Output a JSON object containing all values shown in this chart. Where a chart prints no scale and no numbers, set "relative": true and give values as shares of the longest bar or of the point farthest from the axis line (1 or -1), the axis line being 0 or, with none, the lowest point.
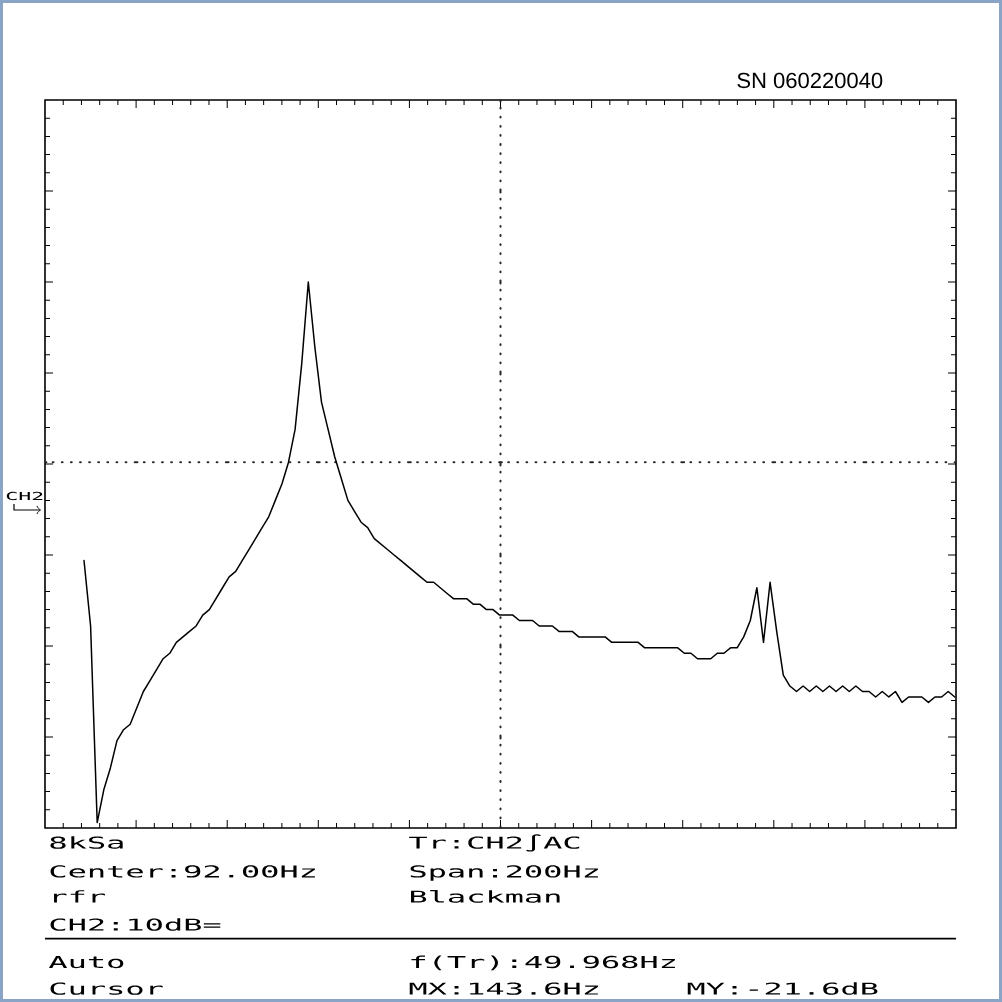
{
  "chart_data": {
    "type": "line",
    "relative": true,
    "color": "#000000",
    "categories": [
      null,
      null,
      null,
      null,
      null,
      null,
      null,
      null,
      null,
      null,
      null,
      null,
      null,
      null,
      null,
      null,
      null,
      null,
      null,
      null,
      null,
      null,
      null,
      null,
      null,
      null,
      null,
      null,
      null,
      null,
      null,
      null,
      null,
      null,
      null,
      null,
      null,
      null,
      null,
      null,
      null,
      null,
      null,
      null,
      null,
      null,
      null,
      null,
      null,
      null,
      null,
      null,
      null,
      null,
      null,
      null,
      null,
      null,
      null,
      null,
      null,
      null,
      null,
      null,
      null,
      null,
      null,
      null,
      null,
      null,
      null,
      null,
      null,
      null,
      null,
      null,
      null,
      null,
      null,
      null,
      null,
      null,
      null,
      null,
      null,
      null,
      null,
      null,
      null,
      null,
      null,
      null,
      null,
      null,
      null,
      null,
      null,
      null,
      null,
      null,
      null,
      null,
      null,
      null,
      null,
      null,
      null,
      null,
      null,
      null,
      null,
      null,
      null,
      null,
      null,
      null,
      null,
      null,
      null,
      null,
      null,
      null,
      null,
      null,
      null,
      null,
      null,
      null,
      null,
      null,
      null,
      null,
      null
    ],
    "values": [
      0.49,
      0.37,
      0.01,
      0.07,
      0.11,
      0.16,
      0.18,
      0.19,
      0.22,
      0.25,
      0.27,
      0.29,
      0.31,
      0.32,
      0.34,
      0.35,
      0.36,
      0.37,
      0.39,
      0.4,
      0.42,
      0.44,
      0.46,
      0.47,
      0.49,
      0.51,
      0.53,
      0.55,
      0.57,
      0.6,
      0.63,
      0.67,
      0.73,
      0.85,
      1,
      0.88,
      0.78,
      0.73,
      0.68,
      0.64,
      0.6,
      0.58,
      0.56,
      0.55,
      0.53,
      0.52,
      0.51,
      0.5,
      0.49,
      0.48,
      0.47,
      0.46,
      0.45,
      0.45,
      0.44,
      0.43,
      0.42,
      0.42,
      0.42,
      0.41,
      0.41,
      0.4,
      0.4,
      0.39,
      0.39,
      0.39,
      0.38,
      0.38,
      0.38,
      0.37,
      0.37,
      0.37,
      0.36,
      0.36,
      0.36,
      0.35,
      0.35,
      0.35,
      0.35,
      0.35,
      0.34,
      0.34,
      0.34,
      0.34,
      0.34,
      0.33,
      0.33,
      0.33,
      0.33,
      0.33,
      0.33,
      0.32,
      0.32,
      0.31,
      0.31,
      0.31,
      0.32,
      0.32,
      0.33,
      0.33,
      0.35,
      0.38,
      0.44,
      0.34,
      0.45,
      0.36,
      0.28,
      0.26,
      0.25,
      0.26,
      0.25,
      0.26,
      0.25,
      0.26,
      0.25,
      0.26,
      0.25,
      0.26,
      0.25,
      0.25,
      0.24,
      0.25,
      0.24,
      0.25,
      0.23,
      0.24,
      0.24,
      0.24,
      0.23,
      0.24,
      0.24,
      0.25,
      0.24
    ],
    "ref_lines": [
      {
        "axis": "y",
        "value": 0.67,
        "line_style": "dotted"
      }
    ],
    "annotations": [
      "SN 060220040",
      "CH2",
      "8kSa",
      "Tr:CH2∫AC",
      "Center:92.00Hz",
      "Span:200Hz",
      "rfr",
      "Blackman",
      "CH2:10dB=",
      "Auto",
      "f(Tr):49.968Hz",
      "Cursor",
      "MX:143.6Hz",
      "MY:-21.6dB"
    ]
  }
}
